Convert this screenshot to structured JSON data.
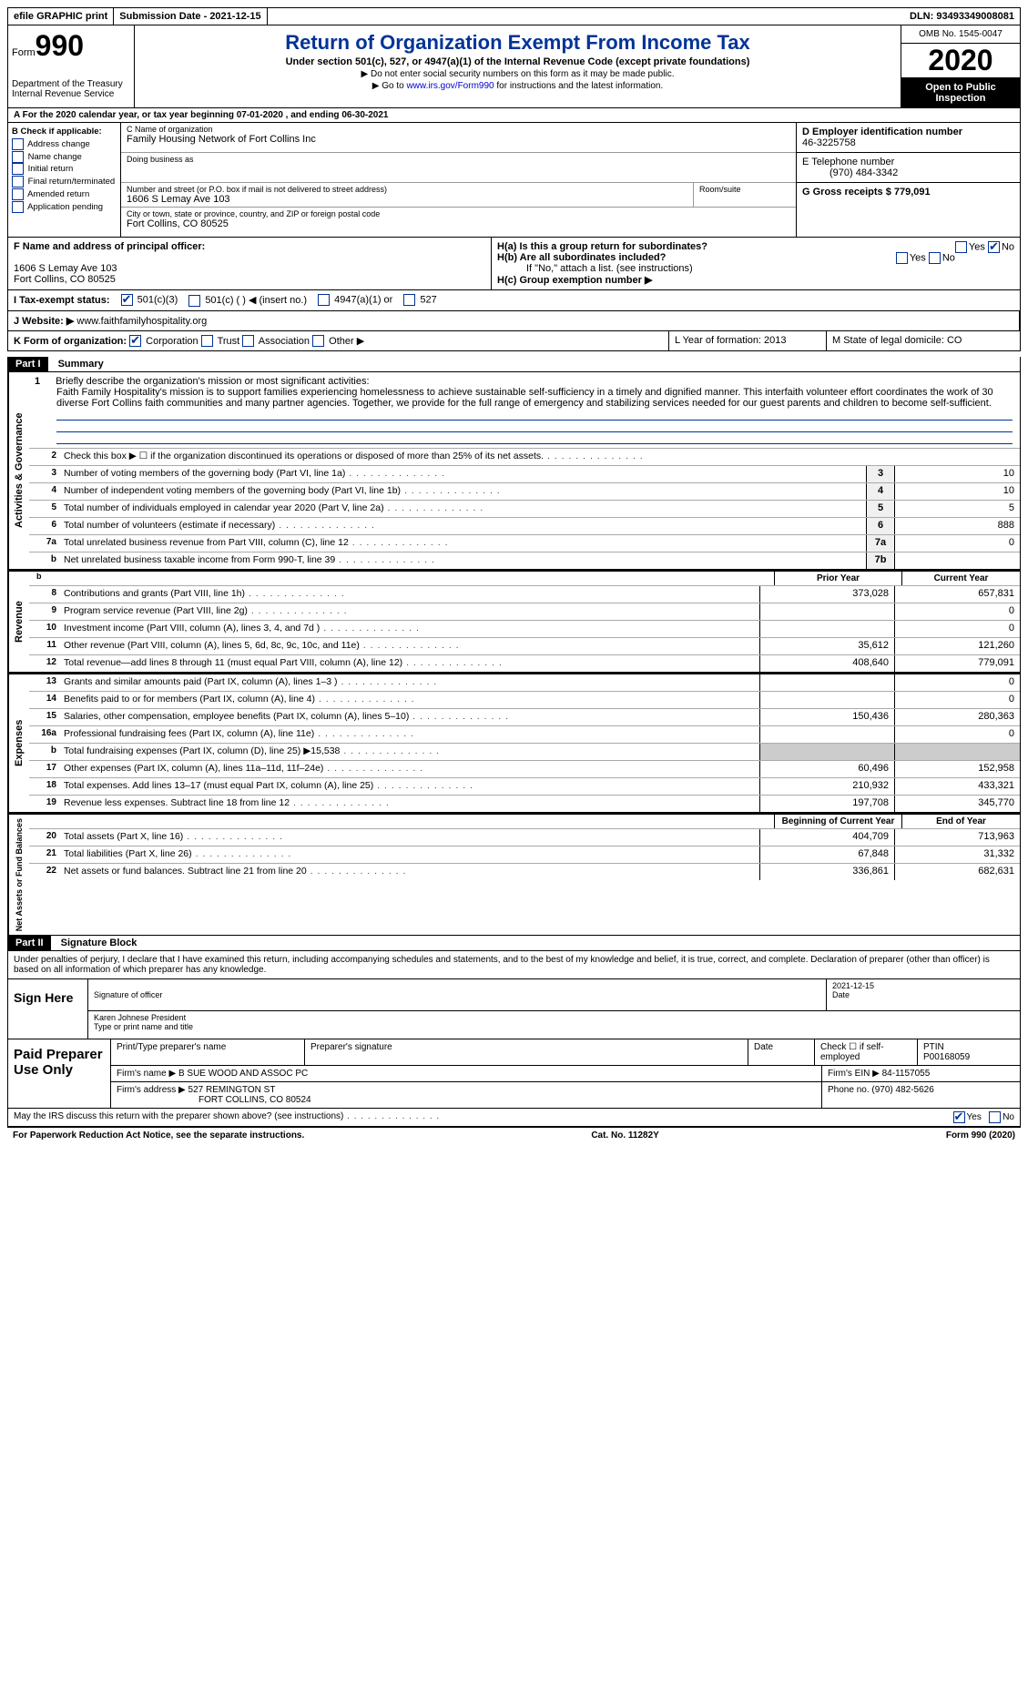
{
  "topbar": {
    "efile": "efile GRAPHIC print",
    "submission": "Submission Date - 2021-12-15",
    "dln": "DLN: 93493349008081"
  },
  "header": {
    "form_label": "Form",
    "form_number": "990",
    "dept": "Department of the Treasury\nInternal Revenue Service",
    "title": "Return of Organization Exempt From Income Tax",
    "subtitle": "Under section 501(c), 527, or 4947(a)(1) of the Internal Revenue Code (except private foundations)",
    "note1": "▶ Do not enter social security numbers on this form as it may be made public.",
    "note2_pre": "▶ Go to ",
    "note2_link": "www.irs.gov/Form990",
    "note2_post": " for instructions and the latest information.",
    "omb": "OMB No. 1545-0047",
    "year": "2020",
    "open": "Open to Public Inspection"
  },
  "row_a": "A For the 2020 calendar year, or tax year beginning 07-01-2020   , and ending 06-30-2021",
  "col_b": {
    "header": "B Check if applicable:",
    "items": [
      "Address change",
      "Name change",
      "Initial return",
      "Final return/terminated",
      "Amended return",
      "Application pending"
    ]
  },
  "col_c": {
    "name_label": "C Name of organization",
    "name": "Family Housing Network of Fort Collins Inc",
    "dba_label": "Doing business as",
    "street_label": "Number and street (or P.O. box if mail is not delivered to street address)",
    "street": "1606 S Lemay Ave 103",
    "room_label": "Room/suite",
    "city_label": "City or town, state or province, country, and ZIP or foreign postal code",
    "city": "Fort Collins, CO  80525"
  },
  "col_de": {
    "d_label": "D Employer identification number",
    "d_val": "46-3225758",
    "e_label": "E Telephone number",
    "e_val": "(970) 484-3342",
    "g_label": "G Gross receipts $ 779,091"
  },
  "f_block": {
    "label": "F  Name and address of principal officer:",
    "addr1": "1606 S Lemay Ave 103",
    "addr2": "Fort Collins, CO  80525"
  },
  "h_block": {
    "ha": "H(a)  Is this a group return for subordinates?",
    "hb": "H(b)  Are all subordinates included?",
    "hb_note": "If \"No,\" attach a list. (see instructions)",
    "hc": "H(c)  Group exemption number ▶"
  },
  "i_row": {
    "label": "I   Tax-exempt status:",
    "opts": [
      "501(c)(3)",
      "501(c) (  ) ◀ (insert no.)",
      "4947(a)(1) or",
      "527"
    ]
  },
  "j_row": {
    "label": "J  Website: ▶",
    "val": "www.faithfamilyhospitality.org"
  },
  "k_row": {
    "k_label": "K Form of organization:",
    "k_opts": [
      "Corporation",
      "Trust",
      "Association",
      "Other ▶"
    ],
    "l": "L Year of formation: 2013",
    "m": "M State of legal domicile: CO"
  },
  "part1": {
    "header": "Part I",
    "title": "Summary"
  },
  "mission": {
    "num": "1",
    "label": "Briefly describe the organization's mission or most significant activities:",
    "text": "Faith Family Hospitality's mission is to support families experiencing homelessness to achieve sustainable self-sufficiency in a timely and dignified manner. This interfaith volunteer effort coordinates the work of 30 diverse Fort Collins faith communities and many partner agencies. Together, we provide for the full range of emergency and stabilizing services needed for our guest parents and children to become self-sufficient."
  },
  "gov_lines": [
    {
      "n": "2",
      "d": "Check this box ▶ ☐  if the organization discontinued its operations or disposed of more than 25% of its net assets."
    },
    {
      "n": "3",
      "d": "Number of voting members of the governing body (Part VI, line 1a)",
      "box": "3",
      "v": "10"
    },
    {
      "n": "4",
      "d": "Number of independent voting members of the governing body (Part VI, line 1b)",
      "box": "4",
      "v": "10"
    },
    {
      "n": "5",
      "d": "Total number of individuals employed in calendar year 2020 (Part V, line 2a)",
      "box": "5",
      "v": "5"
    },
    {
      "n": "6",
      "d": "Total number of volunteers (estimate if necessary)",
      "box": "6",
      "v": "888"
    },
    {
      "n": "7a",
      "d": "Total unrelated business revenue from Part VIII, column (C), line 12",
      "box": "7a",
      "v": "0"
    },
    {
      "n": "b",
      "d": "Net unrelated business taxable income from Form 990-T, line 39",
      "box": "7b",
      "v": ""
    }
  ],
  "rev_header": {
    "py": "Prior Year",
    "cy": "Current Year"
  },
  "rev_lines": [
    {
      "n": "8",
      "d": "Contributions and grants (Part VIII, line 1h)",
      "py": "373,028",
      "cy": "657,831"
    },
    {
      "n": "9",
      "d": "Program service revenue (Part VIII, line 2g)",
      "py": "",
      "cy": "0"
    },
    {
      "n": "10",
      "d": "Investment income (Part VIII, column (A), lines 3, 4, and 7d )",
      "py": "",
      "cy": "0"
    },
    {
      "n": "11",
      "d": "Other revenue (Part VIII, column (A), lines 5, 6d, 8c, 9c, 10c, and 11e)",
      "py": "35,612",
      "cy": "121,260"
    },
    {
      "n": "12",
      "d": "Total revenue—add lines 8 through 11 (must equal Part VIII, column (A), line 12)",
      "py": "408,640",
      "cy": "779,091"
    }
  ],
  "exp_lines": [
    {
      "n": "13",
      "d": "Grants and similar amounts paid (Part IX, column (A), lines 1–3 )",
      "py": "",
      "cy": "0"
    },
    {
      "n": "14",
      "d": "Benefits paid to or for members (Part IX, column (A), line 4)",
      "py": "",
      "cy": "0"
    },
    {
      "n": "15",
      "d": "Salaries, other compensation, employee benefits (Part IX, column (A), lines 5–10)",
      "py": "150,436",
      "cy": "280,363"
    },
    {
      "n": "16a",
      "d": "Professional fundraising fees (Part IX, column (A), line 11e)",
      "py": "",
      "cy": "0"
    },
    {
      "n": "b",
      "d": "Total fundraising expenses (Part IX, column (D), line 25) ▶15,538",
      "py": "—",
      "cy": "—"
    },
    {
      "n": "17",
      "d": "Other expenses (Part IX, column (A), lines 11a–11d, 11f–24e)",
      "py": "60,496",
      "cy": "152,958"
    },
    {
      "n": "18",
      "d": "Total expenses. Add lines 13–17 (must equal Part IX, column (A), line 25)",
      "py": "210,932",
      "cy": "433,321"
    },
    {
      "n": "19",
      "d": "Revenue less expenses. Subtract line 18 from line 12",
      "py": "197,708",
      "cy": "345,770"
    }
  ],
  "na_header": {
    "py": "Beginning of Current Year",
    "cy": "End of Year"
  },
  "na_lines": [
    {
      "n": "20",
      "d": "Total assets (Part X, line 16)",
      "py": "404,709",
      "cy": "713,963"
    },
    {
      "n": "21",
      "d": "Total liabilities (Part X, line 26)",
      "py": "67,848",
      "cy": "31,332"
    },
    {
      "n": "22",
      "d": "Net assets or fund balances. Subtract line 21 from line 20",
      "py": "336,861",
      "cy": "682,631"
    }
  ],
  "part2": {
    "header": "Part II",
    "title": "Signature Block"
  },
  "sig_decl": "Under penalties of perjury, I declare that I have examined this return, including accompanying schedules and statements, and to the best of my knowledge and belief, it is true, correct, and complete. Declaration of preparer (other than officer) is based on all information of which preparer has any knowledge.",
  "sign": {
    "label": "Sign Here",
    "sig_of_officer": "Signature of officer",
    "date_label": "Date",
    "date": "2021-12-15",
    "name": "Karen Johnese  President",
    "name_label": "Type or print name and title"
  },
  "prep": {
    "label": "Paid Preparer Use Only",
    "h1": "Print/Type preparer's name",
    "h2": "Preparer's signature",
    "h3": "Date",
    "h4": "Check ☐ if self-employed",
    "ptin_label": "PTIN",
    "ptin": "P00168059",
    "firm_name_label": "Firm's name   ▶",
    "firm_name": "B SUE WOOD AND ASSOC PC",
    "firm_ein_label": "Firm's EIN ▶",
    "firm_ein": "84-1157055",
    "firm_addr_label": "Firm's address ▶",
    "firm_addr1": "527 REMINGTON ST",
    "firm_addr2": "FORT COLLINS, CO  80524",
    "phone_label": "Phone no.",
    "phone": "(970) 482-5626"
  },
  "discuss": "May the IRS discuss this return with the preparer shown above? (see instructions)",
  "footer": {
    "left": "For Paperwork Reduction Act Notice, see the separate instructions.",
    "mid": "Cat. No. 11282Y",
    "right": "Form 990 (2020)"
  },
  "vtabs": {
    "gov": "Activities & Governance",
    "rev": "Revenue",
    "exp": "Expenses",
    "na": "Net Assets or Fund Balances"
  }
}
